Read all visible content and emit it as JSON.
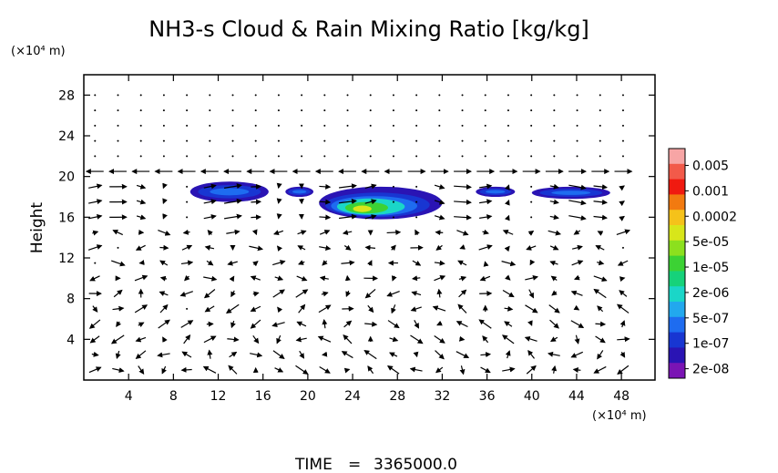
{
  "chart_data": {
    "type": "heatmap",
    "title": "NH3-s Cloud & Rain Mixing Ratio [kg/kg]",
    "ylabel": "Height",
    "y_unit": "(×10⁴ m)",
    "x_unit": "(×10⁴ m)",
    "xlim": [
      0,
      51
    ],
    "ylim": [
      0,
      30
    ],
    "x_ticks": [
      4,
      8,
      12,
      16,
      20,
      24,
      28,
      32,
      36,
      40,
      44,
      48
    ],
    "y_ticks": [
      4,
      8,
      12,
      16,
      20,
      24,
      28
    ],
    "colorbar": {
      "labels": [
        "0.005",
        "0.001",
        "0.0002",
        "5e-05",
        "1e-05",
        "2e-06",
        "5e-07",
        "1e-07",
        "2e-08"
      ],
      "colors": [
        "#f7a5a5",
        "#f25a4a",
        "#f01a10",
        "#f27a10",
        "#f5c21a",
        "#d8e61a",
        "#8ce01e",
        "#3cd234",
        "#16d27a",
        "#1ad6c8",
        "#22a8ee",
        "#1e6cf0",
        "#1836d2",
        "#2a14b4",
        "#7a14b4"
      ]
    },
    "cloud_regions": [
      {
        "x": [
          9.5,
          16.5
        ],
        "y": [
          17.5,
          19.5
        ],
        "level": "1e-07"
      },
      {
        "x": [
          18,
          20.5
        ],
        "y": [
          18,
          19
        ],
        "level": "1e-07"
      },
      {
        "x": [
          21,
          32
        ],
        "y": [
          15.8,
          19
        ],
        "level": "0.0002"
      },
      {
        "x": [
          35,
          38.5
        ],
        "y": [
          18,
          19
        ],
        "level": "1e-07"
      },
      {
        "x": [
          40,
          47
        ],
        "y": [
          17.8,
          19
        ],
        "level": "1e-07"
      }
    ],
    "wind_vectors": "quiver field"
  },
  "footer": {
    "time_label": "TIME",
    "time_value": "3365000.0"
  }
}
